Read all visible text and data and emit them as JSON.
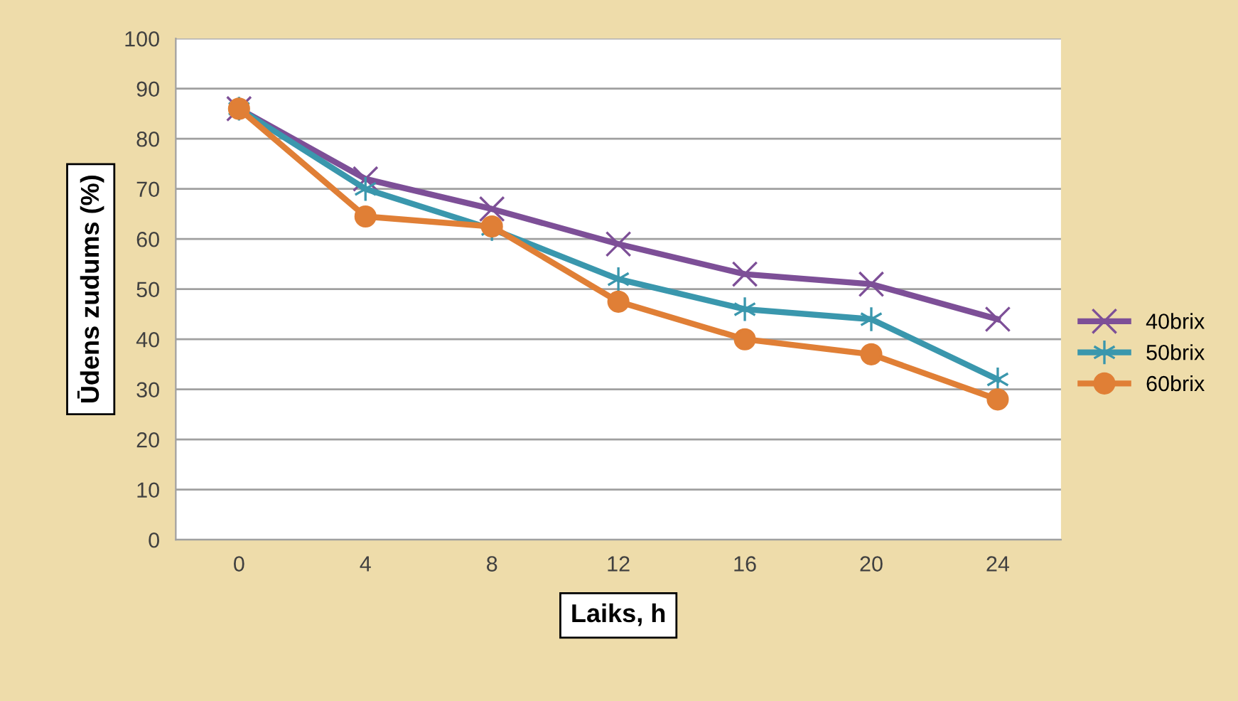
{
  "chart_data": {
    "type": "line",
    "xlabel": "Laiks, h",
    "ylabel": "Ūdens zudums (%)",
    "categories": [
      "0",
      "4",
      "8",
      "12",
      "16",
      "20",
      "24"
    ],
    "series": [
      {
        "name": "40brix",
        "color": "#7d4f97",
        "marker": "cross",
        "values": [
          86,
          72,
          66,
          59,
          53,
          51,
          44
        ]
      },
      {
        "name": "50brix",
        "color": "#3a97ad",
        "marker": "cross",
        "values": [
          86,
          70,
          62,
          52,
          46,
          44,
          32
        ]
      },
      {
        "name": "60brix",
        "color": "#e07f36",
        "marker": "circle",
        "values": [
          86,
          64.5,
          62.5,
          47.5,
          40,
          37,
          28
        ]
      }
    ],
    "ylim": [
      0,
      100
    ],
    "yticks": [
      0,
      10,
      20,
      30,
      40,
      50,
      60,
      70,
      80,
      90,
      100
    ],
    "grid": "y",
    "legend": "right"
  }
}
